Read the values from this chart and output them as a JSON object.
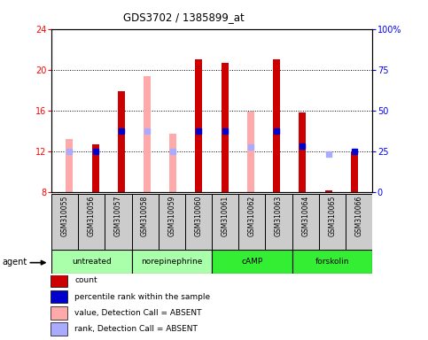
{
  "title": "GDS3702 / 1385899_at",
  "samples": [
    "GSM310055",
    "GSM310056",
    "GSM310057",
    "GSM310058",
    "GSM310059",
    "GSM310060",
    "GSM310061",
    "GSM310062",
    "GSM310063",
    "GSM310064",
    "GSM310065",
    "GSM310066"
  ],
  "groups": [
    {
      "label": "untreated",
      "indices": [
        0,
        1,
        2
      ],
      "color": "#aaffaa"
    },
    {
      "label": "norepinephrine",
      "indices": [
        3,
        4,
        5
      ],
      "color": "#aaffaa"
    },
    {
      "label": "cAMP",
      "indices": [
        6,
        7,
        8
      ],
      "color": "#33ee33"
    },
    {
      "label": "forskolin",
      "indices": [
        9,
        10,
        11
      ],
      "color": "#33ee33"
    }
  ],
  "count_values": [
    null,
    12.7,
    17.9,
    null,
    null,
    21.0,
    20.7,
    null,
    21.0,
    15.8,
    8.2,
    12.0
  ],
  "count_color": "#cc0000",
  "absent_value_values": [
    13.2,
    null,
    null,
    19.4,
    13.7,
    null,
    null,
    15.9,
    null,
    null,
    null,
    null
  ],
  "absent_value_color": "#ffaaaa",
  "percentile_rank_values": [
    null,
    12.0,
    14.0,
    null,
    null,
    14.0,
    14.0,
    null,
    14.0,
    12.5,
    null,
    12.0
  ],
  "percentile_rank_color": "#0000cc",
  "absent_rank_values": [
    12.0,
    null,
    null,
    14.0,
    12.0,
    null,
    null,
    12.4,
    null,
    null,
    11.7,
    null
  ],
  "absent_rank_color": "#aaaaff",
  "ylim_left": [
    8,
    24
  ],
  "yticks_left": [
    8,
    12,
    16,
    20,
    24
  ],
  "yticks_right": [
    0,
    25,
    50,
    75,
    100
  ],
  "ytick_labels_right": [
    "0",
    "25",
    "50",
    "75",
    "100%"
  ],
  "bar_bottom": 8,
  "bar_width": 0.5,
  "legend_items": [
    {
      "label": "count",
      "color": "#cc0000"
    },
    {
      "label": "percentile rank within the sample",
      "color": "#0000cc"
    },
    {
      "label": "value, Detection Call = ABSENT",
      "color": "#ffaaaa"
    },
    {
      "label": "rank, Detection Call = ABSENT",
      "color": "#aaaaff"
    }
  ]
}
